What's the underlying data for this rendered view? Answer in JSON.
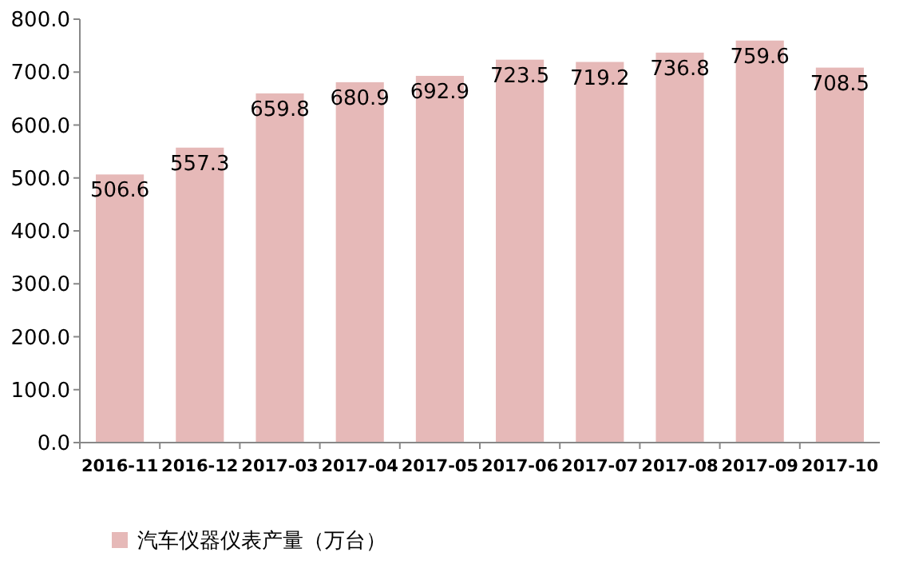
{
  "chart_data": {
    "type": "bar",
    "categories": [
      "2016-11",
      "2016-12",
      "2017-03",
      "2017-04",
      "2017-05",
      "2017-06",
      "2017-07",
      "2017-08",
      "2017-09",
      "2017-10"
    ],
    "series": [
      {
        "name": "汽车仪器仪表产量（万台）",
        "color": "#e6b9b8",
        "values": [
          506.6,
          557.3,
          659.8,
          680.9,
          692.9,
          723.5,
          719.2,
          736.8,
          759.6,
          708.5
        ]
      }
    ],
    "ylim": [
      0,
      800
    ],
    "yticks": [
      {
        "value": 0,
        "label": "0.0"
      },
      {
        "value": 100,
        "label": "100.0"
      },
      {
        "value": 200,
        "label": "200.0"
      },
      {
        "value": 300,
        "label": "300.0"
      },
      {
        "value": 400,
        "label": "400.0"
      },
      {
        "value": 500,
        "label": "500.0"
      },
      {
        "value": 600,
        "label": "600.0"
      },
      {
        "value": 700,
        "label": "700.0"
      },
      {
        "value": 800,
        "label": "800.0"
      }
    ],
    "data_labels": true,
    "legend": "bottom left"
  }
}
